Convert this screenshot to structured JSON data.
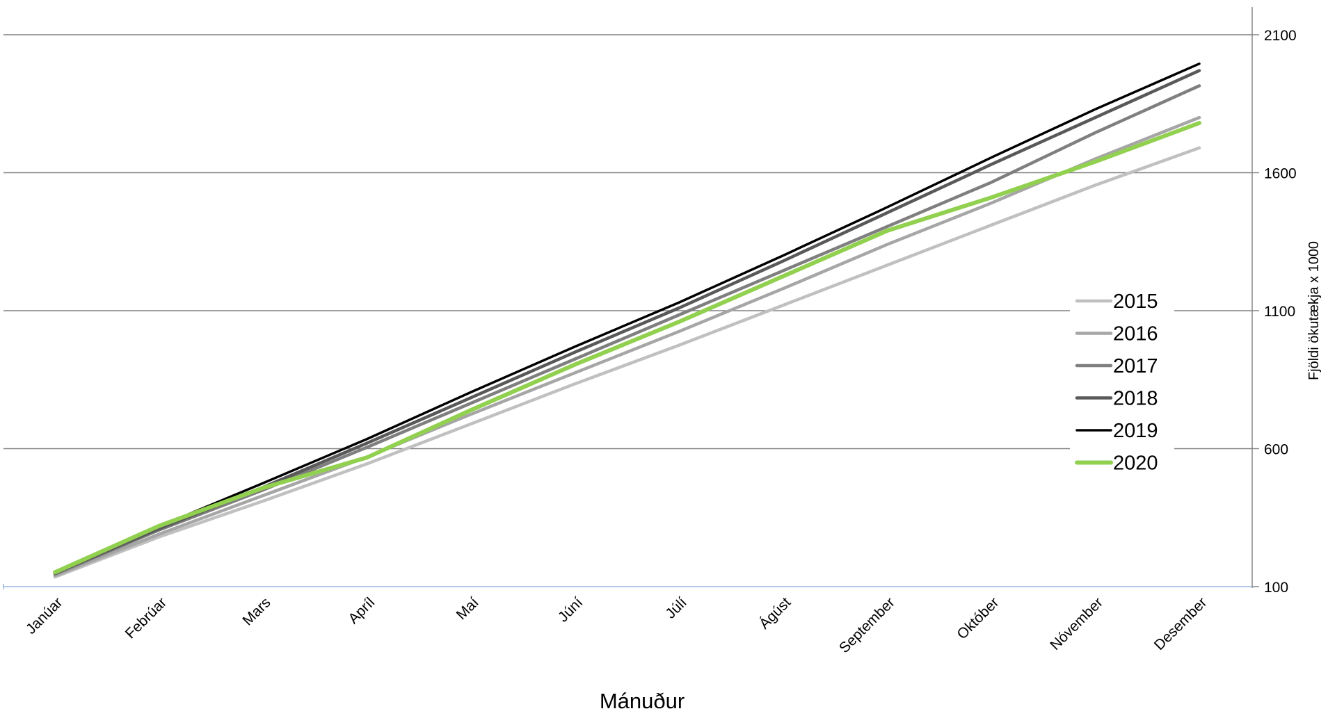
{
  "chart_data": {
    "type": "line",
    "xlabel": "Mánuður",
    "ylabel": "Fjöldi ökutækja x 1000",
    "ylim": [
      100,
      2100
    ],
    "yticks": [
      100,
      600,
      1100,
      1600,
      2100
    ],
    "y_axis_side": "right",
    "grid": "horizontal",
    "legend_position": "right-center",
    "categories": [
      "Janúar",
      "Febrúar",
      "Mars",
      "Apríl",
      "Maí",
      "Júní",
      "Júlí",
      "Ágúst",
      "September",
      "Október",
      "Nóvember",
      "Desember"
    ],
    "series": [
      {
        "name": "2015",
        "color": "#c0c0c0",
        "values": [
          135,
          280,
          410,
          545,
          690,
          835,
          975,
          1120,
          1265,
          1410,
          1555,
          1690
        ]
      },
      {
        "name": "2016",
        "color": "#a6a6a6",
        "values": [
          140,
          290,
          430,
          570,
          725,
          875,
          1025,
          1180,
          1340,
          1490,
          1650,
          1800
        ]
      },
      {
        "name": "2017",
        "color": "#7f7f7f",
        "values": [
          145,
          305,
          450,
          605,
          765,
          925,
          1085,
          1245,
          1405,
          1565,
          1745,
          1915
        ]
      },
      {
        "name": "2018",
        "color": "#595959",
        "values": [
          148,
          310,
          460,
          620,
          785,
          950,
          1110,
          1280,
          1455,
          1630,
          1800,
          1970
        ]
      },
      {
        "name": "2019",
        "color": "#000000",
        "values": [
          150,
          318,
          475,
          635,
          805,
          970,
          1130,
          1300,
          1475,
          1655,
          1830,
          1995
        ]
      },
      {
        "name": "2020",
        "color": "#92d050",
        "values": [
          152,
          320,
          458,
          568,
          740,
          905,
          1060,
          1225,
          1390,
          1510,
          1640,
          1780
        ]
      }
    ]
  }
}
